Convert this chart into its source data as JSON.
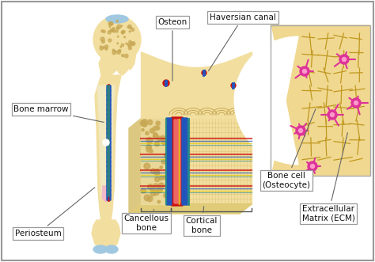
{
  "bg_color": "#ffffff",
  "border_color": "#999999",
  "bone_color": "#f2dfa0",
  "bone_dark": "#c8a855",
  "bone_med": "#e8cc80",
  "marrow_color": "#e0c070",
  "cartilage_color": "#a0c8e0",
  "red_vessel": "#cc1111",
  "blue_vessel": "#2255bb",
  "teal_vessel": "#228888",
  "yellow_line": "#ddcc00",
  "pink_cell": "#dd3399",
  "cell_bg": "#f0d890",
  "cell_border": "#c8a040",
  "pink_bg": "#f0b8c0",
  "label_color": "#111111",
  "line_color": "#666666",
  "figsize": [
    4.74,
    3.31
  ],
  "dpi": 100,
  "labels": {
    "osteon": "Osteon",
    "haversian": "Haversian canal",
    "bone_marrow": "Bone marrow",
    "periosteum": "Periosteum",
    "cancellous": "Cancellous\nbone",
    "cortical": "Cortical\nbone",
    "bone_cell": "Bone cell\n(Osteocyte)",
    "ecm": "Extracellular\nMatrix (ECM)"
  }
}
